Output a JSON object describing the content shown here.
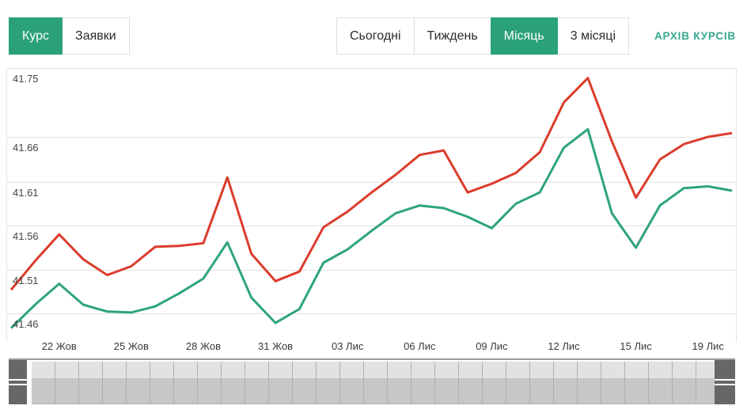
{
  "toolbar": {
    "view_tabs": [
      {
        "label": "Курс",
        "active": true
      },
      {
        "label": "Заявки",
        "active": false
      }
    ],
    "period_tabs": [
      {
        "label": "Сьогодні",
        "active": false
      },
      {
        "label": "Тиждень",
        "active": false
      },
      {
        "label": "Місяць",
        "active": true
      },
      {
        "label": "3 місяці",
        "active": false
      }
    ],
    "archive_link": "АРХІВ КУРСІВ"
  },
  "colors": {
    "accent_green": "#2aa17a",
    "link_green": "#35a78f",
    "red_line": "#db3c2c",
    "green_line": "#2ea47b",
    "grid": "#e4e4e4"
  },
  "chart_data": {
    "type": "line",
    "title": "",
    "xlabel": "",
    "ylabel": "",
    "grid": true,
    "legend": "none",
    "ylim": [
      41.44,
      41.76
    ],
    "y_ticks": [
      41.46,
      41.51,
      41.56,
      41.61,
      41.66,
      41.75
    ],
    "points_count": 31,
    "x_tick_labels": [
      "22 Жов",
      "25 Жов",
      "28 Жов",
      "31 Жов",
      "03 Лис",
      "06 Лис",
      "09 Лис",
      "12 Лис",
      "15 Лис",
      "19 Лис"
    ],
    "x_tick_indices": [
      2,
      5,
      8,
      11,
      14,
      17,
      20,
      23,
      26,
      29
    ],
    "series": [
      {
        "name": "red",
        "color": "#db3c2c",
        "values": [
          41.487,
          41.52,
          41.55,
          41.522,
          41.504,
          41.514,
          41.536,
          41.537,
          41.54,
          41.615,
          41.528,
          41.497,
          41.508,
          41.558,
          41.576,
          41.598,
          41.618,
          41.64,
          41.645,
          41.598,
          41.608,
          41.62,
          41.643,
          41.705,
          41.737,
          41.655,
          41.592,
          41.635,
          41.652,
          41.66,
          41.665
        ]
      },
      {
        "name": "green",
        "color": "#2ea47b",
        "values": [
          41.443,
          41.47,
          41.494,
          41.47,
          41.462,
          41.461,
          41.468,
          41.483,
          41.5,
          41.541,
          41.478,
          41.449,
          41.465,
          41.518,
          41.533,
          41.554,
          41.574,
          41.583,
          41.58,
          41.57,
          41.557,
          41.585,
          41.598,
          41.648,
          41.67,
          41.574,
          41.535,
          41.583,
          41.603,
          41.605,
          41.6
        ]
      }
    ]
  }
}
